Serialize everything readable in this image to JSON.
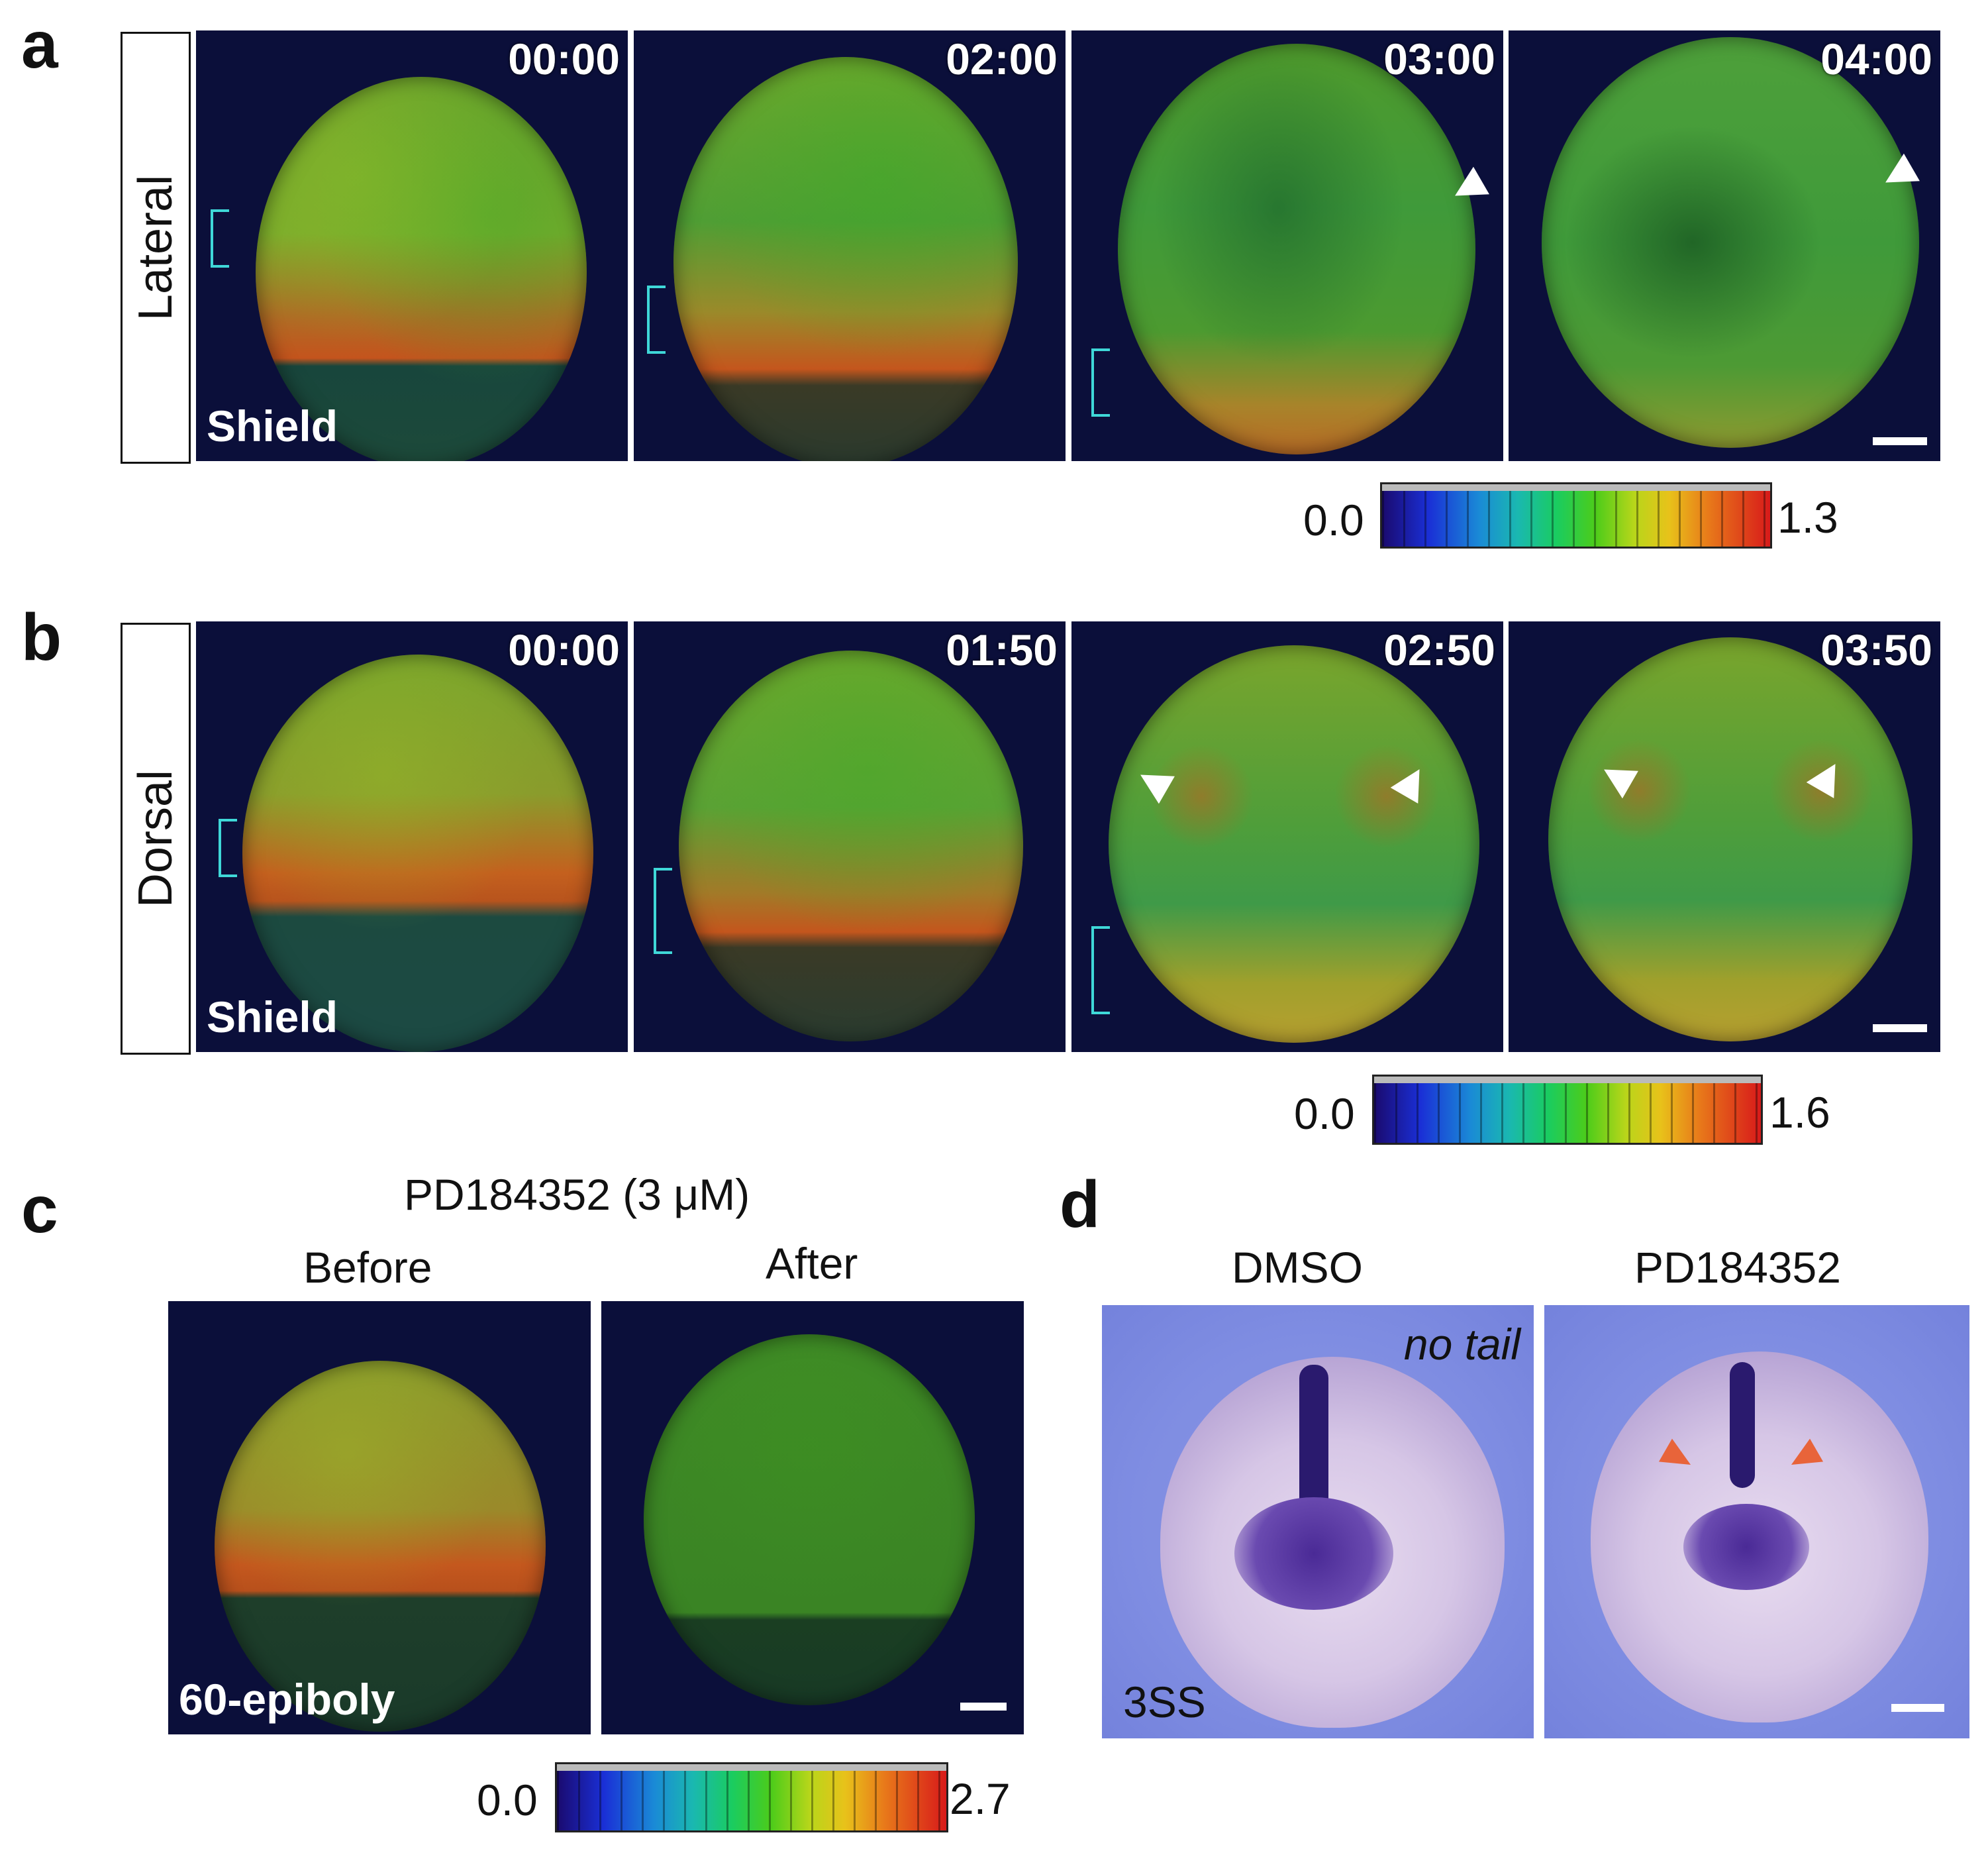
{
  "panels": {
    "a": {
      "letter": "a",
      "view_label": "Lateral",
      "stage_label": "Shield",
      "times": [
        "00:00",
        "02:00",
        "03:00",
        "04:00"
      ],
      "colorbar": {
        "min": "0.0",
        "max": "1.3"
      }
    },
    "b": {
      "letter": "b",
      "view_label": "Dorsal",
      "stage_label": "Shield",
      "times": [
        "00:00",
        "01:50",
        "02:50",
        "03:50"
      ],
      "colorbar": {
        "min": "0.0",
        "max": "1.6"
      }
    },
    "c": {
      "letter": "c",
      "title": "PD184352 (3 μM)",
      "before_label": "Before",
      "after_label": "After",
      "stage_label": "60-epiboly",
      "colorbar": {
        "min": "0.0",
        "max": "2.7"
      }
    },
    "d": {
      "letter": "d",
      "left_label": "DMSO",
      "right_label": "PD184352",
      "gene_label": "no tail",
      "stage_label": "3SS"
    }
  },
  "colors": {
    "frame_bg": "#0b0f3a",
    "bracket": "#3fd8d8",
    "arrow_d": "#e8643a"
  }
}
